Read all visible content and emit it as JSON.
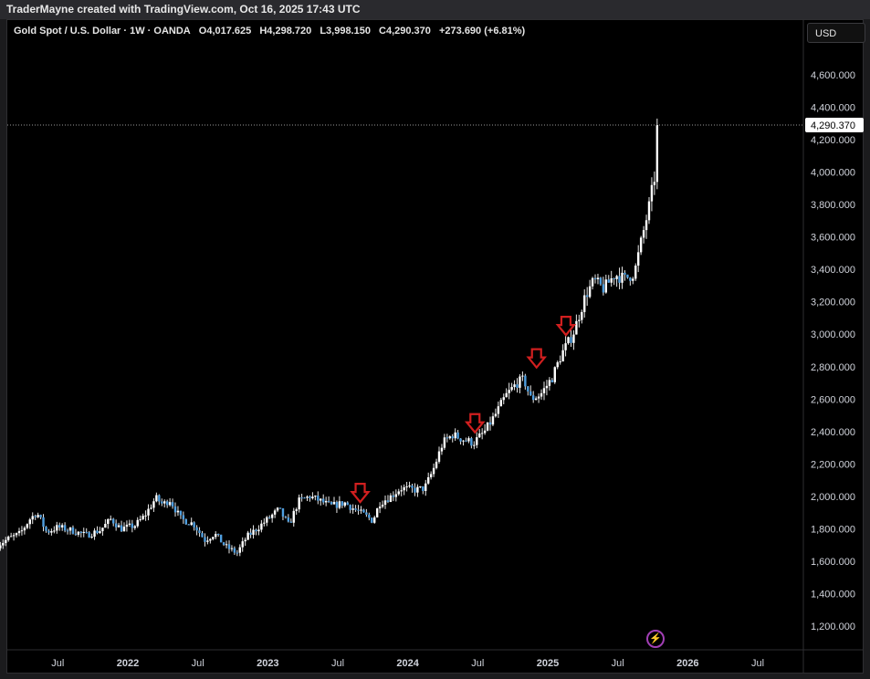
{
  "header": {
    "caption": "TraderMayne created with TradingView.com, Oct 16, 2025 17:43 UTC"
  },
  "legend": {
    "symbol": "Gold Spot / U.S. Dollar · 1W · OANDA",
    "open": "O4,017.625",
    "high": "H4,298.720",
    "low": "L3,998.150",
    "close": "C4,290.370",
    "change": "+273.690 (+6.81%)"
  },
  "currency_button": "USD",
  "price_badge": "4,290.370",
  "colors": {
    "up": "#ffffff",
    "down": "#4f9fe0",
    "arrow": "#d11f1f",
    "background": "#000000"
  },
  "icons": {
    "bottom": "lightning-icon"
  },
  "chart_data": {
    "type": "candlestick",
    "title": "Gold Spot / U.S. Dollar · 1W · OANDA",
    "ylim": [
      1050,
      4800
    ],
    "y_ticks": [
      "1,200.000",
      "1,400.000",
      "1,600.000",
      "1,800.000",
      "2,000.000",
      "2,200.000",
      "2,400.000",
      "2,600.000",
      "2,800.000",
      "3,000.000",
      "3,200.000",
      "3,400.000",
      "3,600.000",
      "3,800.000",
      "4,000.000",
      "4,200.000",
      "4,400.000",
      "4,600.000"
    ],
    "x_ticks": [
      {
        "label": "Jul",
        "t": 2021.5,
        "bold": false
      },
      {
        "label": "2022",
        "t": 2022.0,
        "bold": true
      },
      {
        "label": "Jul",
        "t": 2022.5,
        "bold": false
      },
      {
        "label": "2023",
        "t": 2023.0,
        "bold": true
      },
      {
        "label": "Jul",
        "t": 2023.5,
        "bold": false
      },
      {
        "label": "2024",
        "t": 2024.0,
        "bold": true
      },
      {
        "label": "Jul",
        "t": 2024.5,
        "bold": false
      },
      {
        "label": "2025",
        "t": 2025.0,
        "bold": true
      },
      {
        "label": "Jul",
        "t": 2025.5,
        "bold": false
      },
      {
        "label": "2026",
        "t": 2026.0,
        "bold": true
      },
      {
        "label": "Jul",
        "t": 2026.5,
        "bold": false
      }
    ],
    "last_price": 4290.37,
    "trend": [
      [
        2021.07,
        1700
      ],
      [
        2021.15,
        1740
      ],
      [
        2021.23,
        1770
      ],
      [
        2021.3,
        1860
      ],
      [
        2021.35,
        1900
      ],
      [
        2021.42,
        1780
      ],
      [
        2021.5,
        1810
      ],
      [
        2021.6,
        1790
      ],
      [
        2021.7,
        1760
      ],
      [
        2021.8,
        1790
      ],
      [
        2021.88,
        1860
      ],
      [
        2021.95,
        1800
      ],
      [
        2022.05,
        1820
      ],
      [
        2022.12,
        1880
      ],
      [
        2022.2,
        1990
      ],
      [
        2022.25,
        1950
      ],
      [
        2022.3,
        1980
      ],
      [
        2022.38,
        1860
      ],
      [
        2022.47,
        1830
      ],
      [
        2022.55,
        1730
      ],
      [
        2022.62,
        1770
      ],
      [
        2022.7,
        1690
      ],
      [
        2022.78,
        1650
      ],
      [
        2022.85,
        1750
      ],
      [
        2022.92,
        1800
      ],
      [
        2023.0,
        1860
      ],
      [
        2023.08,
        1920
      ],
      [
        2023.15,
        1820
      ],
      [
        2023.22,
        1970
      ],
      [
        2023.3,
        2000
      ],
      [
        2023.38,
        1970
      ],
      [
        2023.45,
        1940
      ],
      [
        2023.55,
        1960
      ],
      [
        2023.62,
        1920
      ],
      [
        2023.7,
        1880
      ],
      [
        2023.75,
        1850
      ],
      [
        2023.8,
        1960
      ],
      [
        2023.88,
        2000
      ],
      [
        2023.95,
        2050
      ],
      [
        2024.05,
        2040
      ],
      [
        2024.12,
        2050
      ],
      [
        2024.18,
        2160
      ],
      [
        2024.25,
        2330
      ],
      [
        2024.32,
        2380
      ],
      [
        2024.4,
        2350
      ],
      [
        2024.47,
        2330
      ],
      [
        2024.55,
        2400
      ],
      [
        2024.63,
        2510
      ],
      [
        2024.7,
        2620
      ],
      [
        2024.78,
        2700
      ],
      [
        2024.83,
        2720
      ],
      [
        2024.88,
        2600
      ],
      [
        2024.95,
        2630
      ],
      [
        2025.03,
        2730
      ],
      [
        2025.1,
        2880
      ],
      [
        2025.18,
        3000
      ],
      [
        2025.27,
        3240
      ],
      [
        2025.33,
        3330
      ],
      [
        2025.4,
        3280
      ],
      [
        2025.48,
        3370
      ],
      [
        2025.55,
        3340
      ],
      [
        2025.62,
        3380
      ],
      [
        2025.67,
        3580
      ],
      [
        2025.72,
        3770
      ],
      [
        2025.77,
        4000
      ],
      [
        2025.79,
        4290
      ]
    ],
    "arrows": [
      {
        "t": 2023.66,
        "price": 2010
      },
      {
        "t": 2024.48,
        "price": 2440
      },
      {
        "t": 2024.92,
        "price": 2840
      },
      {
        "t": 2025.13,
        "price": 3040
      }
    ]
  }
}
